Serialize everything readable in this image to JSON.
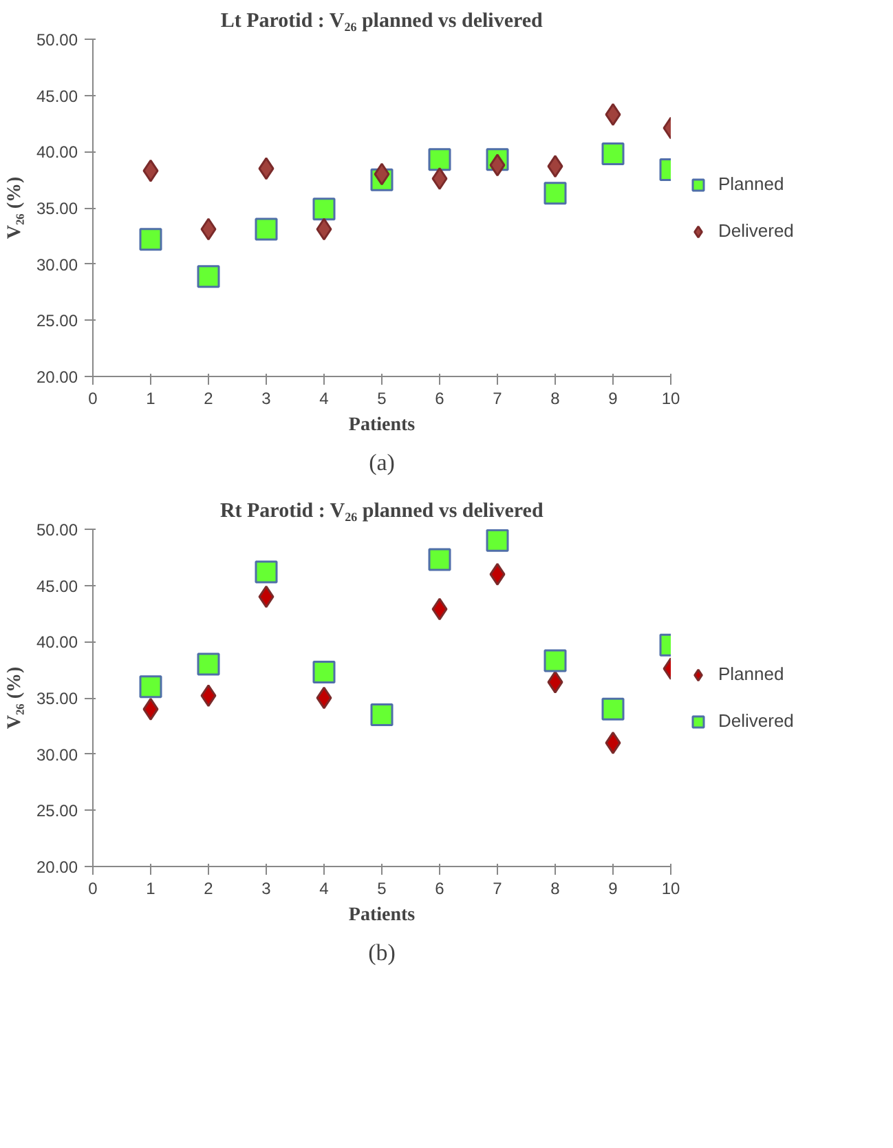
{
  "chart_data": [
    {
      "type": "scatter",
      "title": "Lt Parotid : V₂₆ planned vs delivered",
      "xlabel": "Patients",
      "ylabel": "V₂₆ (%)",
      "annotations": [
        "(a)"
      ],
      "x": [
        1,
        2,
        3,
        4,
        5,
        6,
        7,
        8,
        9,
        10
      ],
      "series": [
        {
          "name": "Planned",
          "color": "#66ff33",
          "marker": "square",
          "values": [
            32.2,
            28.9,
            33.1,
            34.9,
            37.5,
            39.3,
            39.3,
            36.3,
            39.8,
            38.4
          ]
        },
        {
          "name": "Delivered",
          "color": "#a0413c",
          "marker": "diamond",
          "values": [
            38.3,
            33.1,
            38.5,
            33.1,
            38.0,
            37.6,
            38.8,
            38.7,
            43.3,
            42.1
          ]
        }
      ],
      "xlim": [
        0,
        10
      ],
      "xticks": [
        0,
        1,
        2,
        3,
        4,
        5,
        6,
        7,
        8,
        9,
        10
      ],
      "ylim": [
        20,
        50
      ],
      "yticks": [
        {
          "value": 20,
          "label": "20.00"
        },
        {
          "value": 25,
          "label": "25.00"
        },
        {
          "value": 30,
          "label": "30.00"
        },
        {
          "value": 35,
          "label": "35.00"
        },
        {
          "value": 40,
          "label": "40.00"
        },
        {
          "value": 45,
          "label": "45.00"
        },
        {
          "value": 50,
          "label": "50.00"
        }
      ],
      "grid": false,
      "legend": "right"
    },
    {
      "type": "scatter",
      "title": "Rt Parotid : V₂₆ planned vs delivered",
      "xlabel": "Patients",
      "ylabel": "V₂₆ (%)",
      "annotations": [
        "(b)"
      ],
      "x": [
        1,
        2,
        3,
        4,
        5,
        6,
        7,
        8,
        9,
        10
      ],
      "series": [
        {
          "name": "Planned",
          "color": "#c00000",
          "marker": "diamond",
          "values": [
            34.0,
            35.2,
            44.0,
            35.0,
            null,
            42.9,
            46.0,
            36.4,
            31.0,
            37.6
          ]
        },
        {
          "name": "Delivered",
          "color": "#66ff33",
          "marker": "square",
          "values": [
            36.0,
            38.0,
            46.2,
            37.3,
            33.5,
            47.3,
            49.0,
            38.3,
            34.0,
            39.7
          ]
        }
      ],
      "xlim": [
        0,
        10
      ],
      "xticks": [
        0,
        1,
        2,
        3,
        4,
        5,
        6,
        7,
        8,
        9,
        10
      ],
      "ylim": [
        20,
        50
      ],
      "yticks": [
        {
          "value": 20,
          "label": "20.00"
        },
        {
          "value": 25,
          "label": "25.00"
        },
        {
          "value": 30,
          "label": "30.00"
        },
        {
          "value": 35,
          "label": "35.00"
        },
        {
          "value": 40,
          "label": "40.00"
        },
        {
          "value": 45,
          "label": "45.00"
        },
        {
          "value": 50,
          "label": "50.00"
        }
      ],
      "grid": false,
      "legend": "right"
    }
  ]
}
